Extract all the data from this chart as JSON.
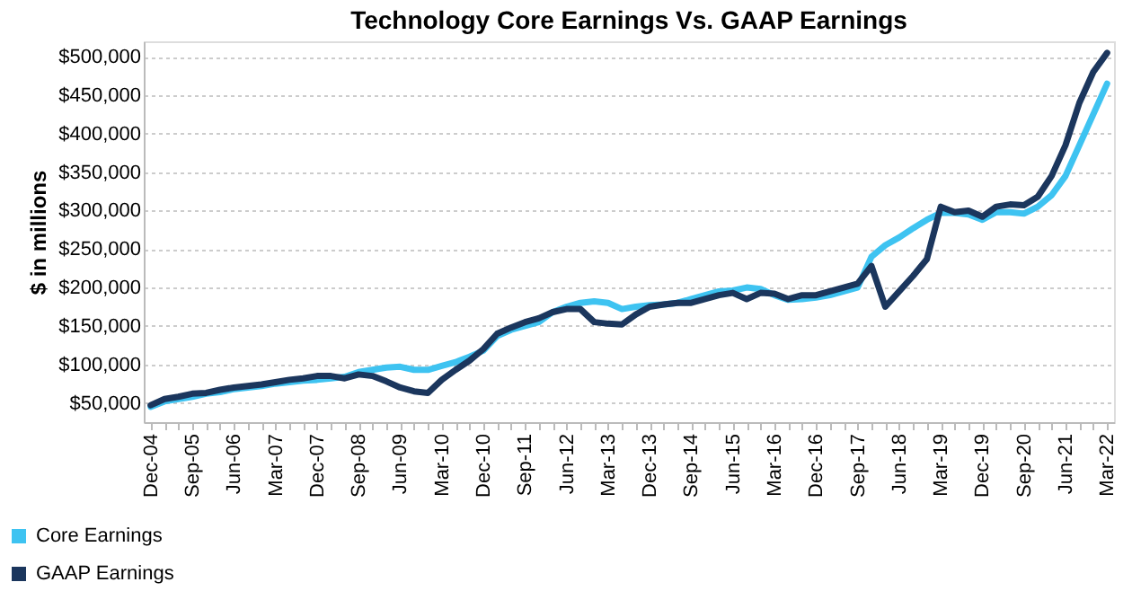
{
  "chart_data": {
    "type": "line",
    "title": "Technology Core Earnings Vs. GAAP Earnings",
    "ylabel": "$ in millions",
    "categories": [
      "Dec-04",
      null,
      null,
      "Sep-05",
      null,
      null,
      "Jun-06",
      null,
      null,
      "Mar-07",
      null,
      null,
      "Dec-07",
      null,
      null,
      "Sep-08",
      null,
      null,
      "Jun-09",
      null,
      null,
      "Mar-10",
      null,
      null,
      "Dec-10",
      null,
      null,
      "Sep-11",
      null,
      null,
      "Jun-12",
      null,
      null,
      "Mar-13",
      null,
      null,
      "Dec-13",
      null,
      null,
      "Sep-14",
      null,
      null,
      "Jun-15",
      null,
      null,
      "Mar-16",
      null,
      null,
      "Dec-16",
      null,
      null,
      "Sep-17",
      null,
      null,
      "Jun-18",
      null,
      null,
      "Mar-19",
      null,
      null,
      "Dec-19",
      null,
      null,
      "Sep-20",
      null,
      null,
      "Jun-21",
      null,
      null,
      "Mar-22"
    ],
    "series": [
      {
        "name": "Core Earnings",
        "color": "#3ec3f1",
        "values": [
          45000,
          52000,
          55000,
          58000,
          62000,
          64000,
          68000,
          70000,
          72000,
          75000,
          77000,
          79000,
          80000,
          82000,
          84000,
          90000,
          93000,
          96000,
          97000,
          93000,
          93000,
          98000,
          103000,
          110000,
          118000,
          137000,
          145000,
          150000,
          155000,
          168000,
          175000,
          180000,
          182000,
          180000,
          172000,
          175000,
          177000,
          178000,
          180000,
          185000,
          190000,
          195000,
          196000,
          200000,
          198000,
          190000,
          184000,
          185000,
          187000,
          190000,
          195000,
          200000,
          240000,
          255000,
          265000,
          277000,
          288000,
          297000,
          297000,
          295000,
          288000,
          298000,
          298000,
          296000,
          305000,
          320000,
          345000,
          385000,
          425000,
          465000
        ]
      },
      {
        "name": "GAAP Earnings",
        "color": "#1b365d",
        "values": [
          47000,
          55000,
          58000,
          62000,
          63000,
          67000,
          70000,
          72000,
          74000,
          77000,
          80000,
          82000,
          85000,
          85000,
          82000,
          87000,
          85000,
          78000,
          70000,
          65000,
          63000,
          80000,
          93000,
          105000,
          120000,
          140000,
          148000,
          155000,
          160000,
          168000,
          172000,
          172000,
          155000,
          153000,
          152000,
          165000,
          175000,
          178000,
          180000,
          180000,
          185000,
          190000,
          193000,
          185000,
          193000,
          192000,
          185000,
          190000,
          190000,
          195000,
          200000,
          205000,
          228000,
          175000,
          195000,
          215000,
          237000,
          305000,
          298000,
          300000,
          292000,
          305000,
          308000,
          307000,
          318000,
          345000,
          385000,
          440000,
          480000,
          505000
        ]
      }
    ],
    "ylim": [
      25000,
      520000
    ],
    "yticks": [
      {
        "value": 50000,
        "label": "$50,000"
      },
      {
        "value": 100000,
        "label": "$100,000"
      },
      {
        "value": 150000,
        "label": "$150,000"
      },
      {
        "value": 200000,
        "label": "$200,000"
      },
      {
        "value": 250000,
        "label": "$250,000"
      },
      {
        "value": 300000,
        "label": "$300,000"
      },
      {
        "value": 350000,
        "label": "$350,000"
      },
      {
        "value": 400000,
        "label": "$400,000"
      },
      {
        "value": 450000,
        "label": "$450,000"
      },
      {
        "value": 500000,
        "label": "$500,000"
      }
    ],
    "grid": "y",
    "legend": "bottom left",
    "marker": "none",
    "line_style": "solid"
  }
}
